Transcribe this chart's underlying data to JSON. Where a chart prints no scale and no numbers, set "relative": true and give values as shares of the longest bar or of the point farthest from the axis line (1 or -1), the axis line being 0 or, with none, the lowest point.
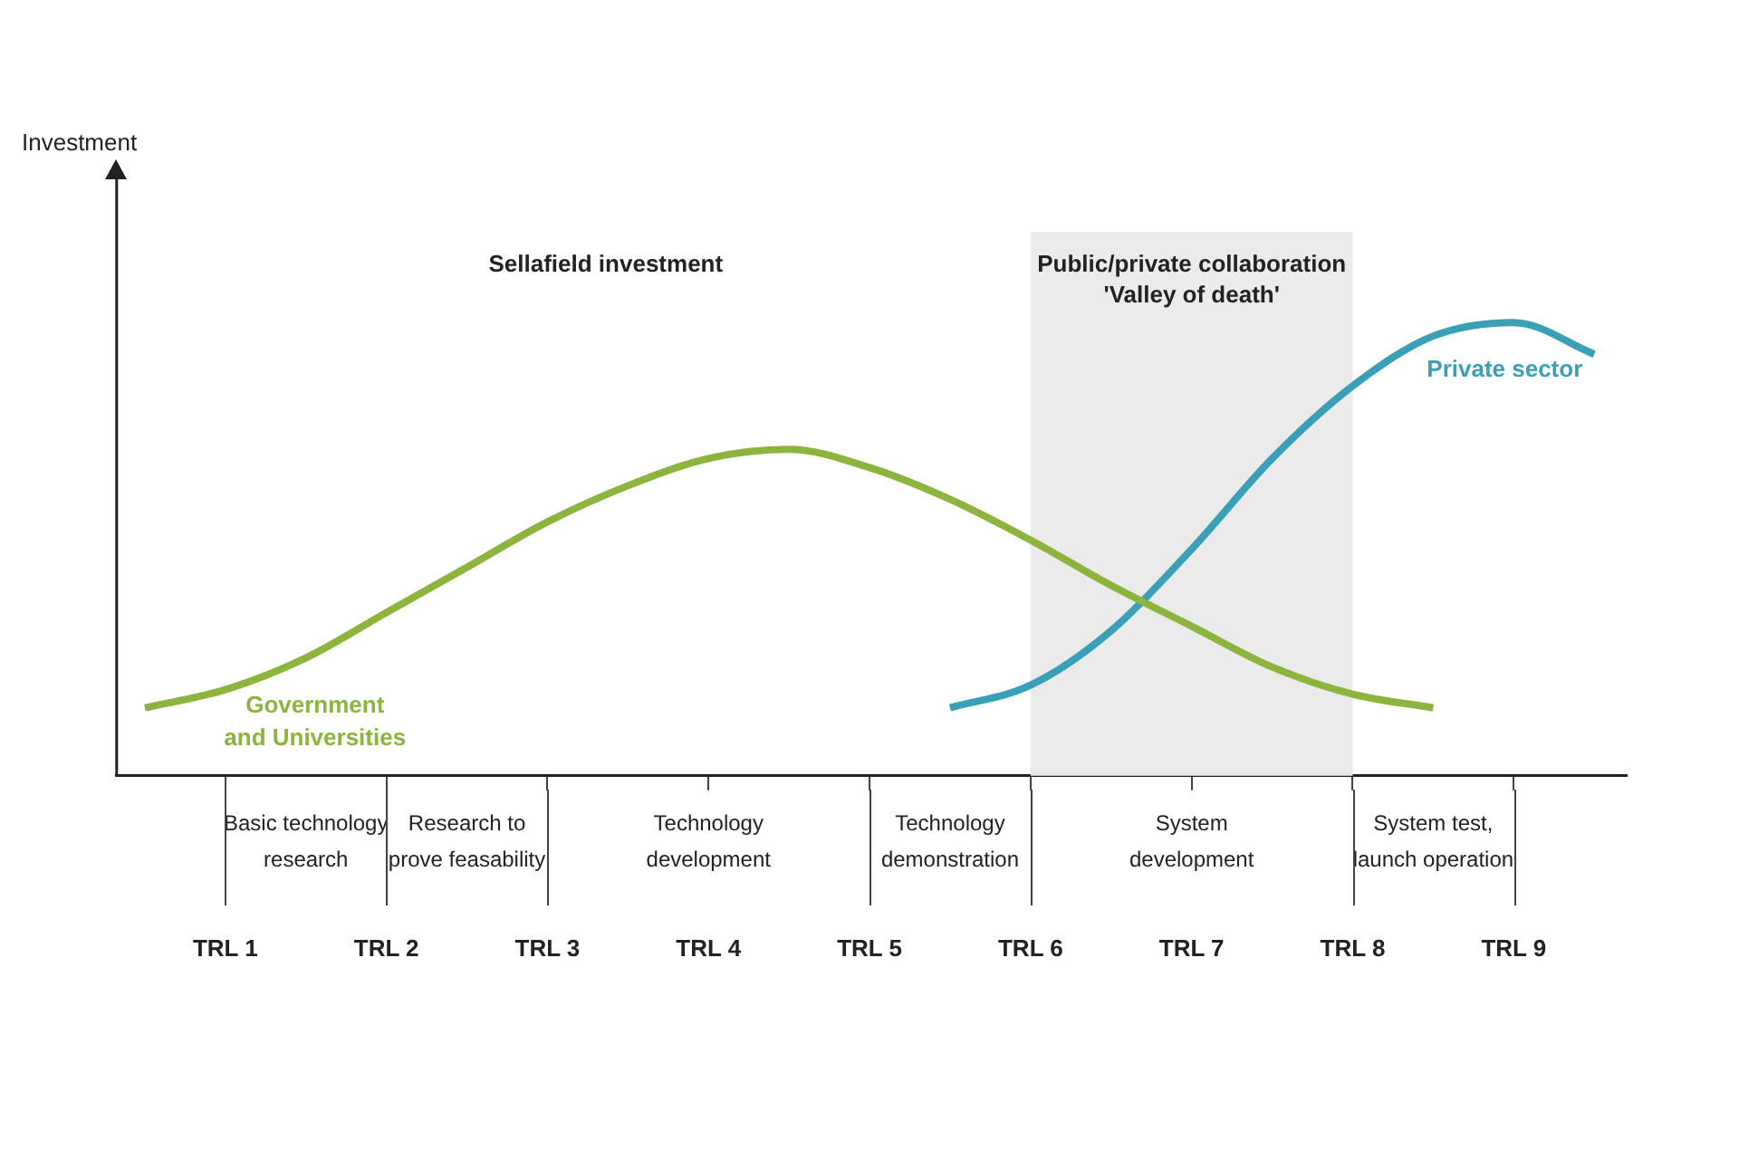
{
  "chart_data": {
    "type": "line",
    "relative": true,
    "legend": false,
    "grid": false,
    "categories": [
      null,
      "TRL 1",
      null,
      "TRL 2",
      null,
      "TRL 3",
      null,
      "TRL 4",
      null,
      "TRL 5",
      null,
      "TRL 6",
      null,
      "TRL 7",
      null,
      "TRL 8",
      null,
      "TRL 9",
      null
    ],
    "series": [
      {
        "name": "Government\nand Universities",
        "color": "#8db43e",
        "values": [
          0.15,
          0.19,
          0.26,
          0.36,
          0.46,
          0.56,
          0.64,
          0.7,
          0.72,
          0.68,
          0.61,
          0.52,
          0.42,
          0.33,
          0.24,
          0.18,
          0.15,
          null,
          null
        ]
      },
      {
        "name": "Private sector",
        "color": "#3aa0b8",
        "values": [
          null,
          null,
          null,
          null,
          null,
          null,
          null,
          null,
          null,
          null,
          0.15,
          0.2,
          0.32,
          0.5,
          0.7,
          0.86,
          0.97,
          1,
          0.93
        ]
      }
    ],
    "bands": [
      {
        "axis": "x",
        "from": "TRL 6",
        "to": "TRL 8",
        "label": "Public/private collaboration\n'Valley of death'",
        "color": "#ebebeb"
      }
    ],
    "annotations": [
      "Investment",
      "Sellafield investment",
      "Basic technology\nresearch",
      "Research to\nprove feasability",
      "Technology\ndevelopment",
      "Technology\ndemonstration",
      "System\ndevelopment",
      "System test,\nlaunch operation"
    ]
  }
}
